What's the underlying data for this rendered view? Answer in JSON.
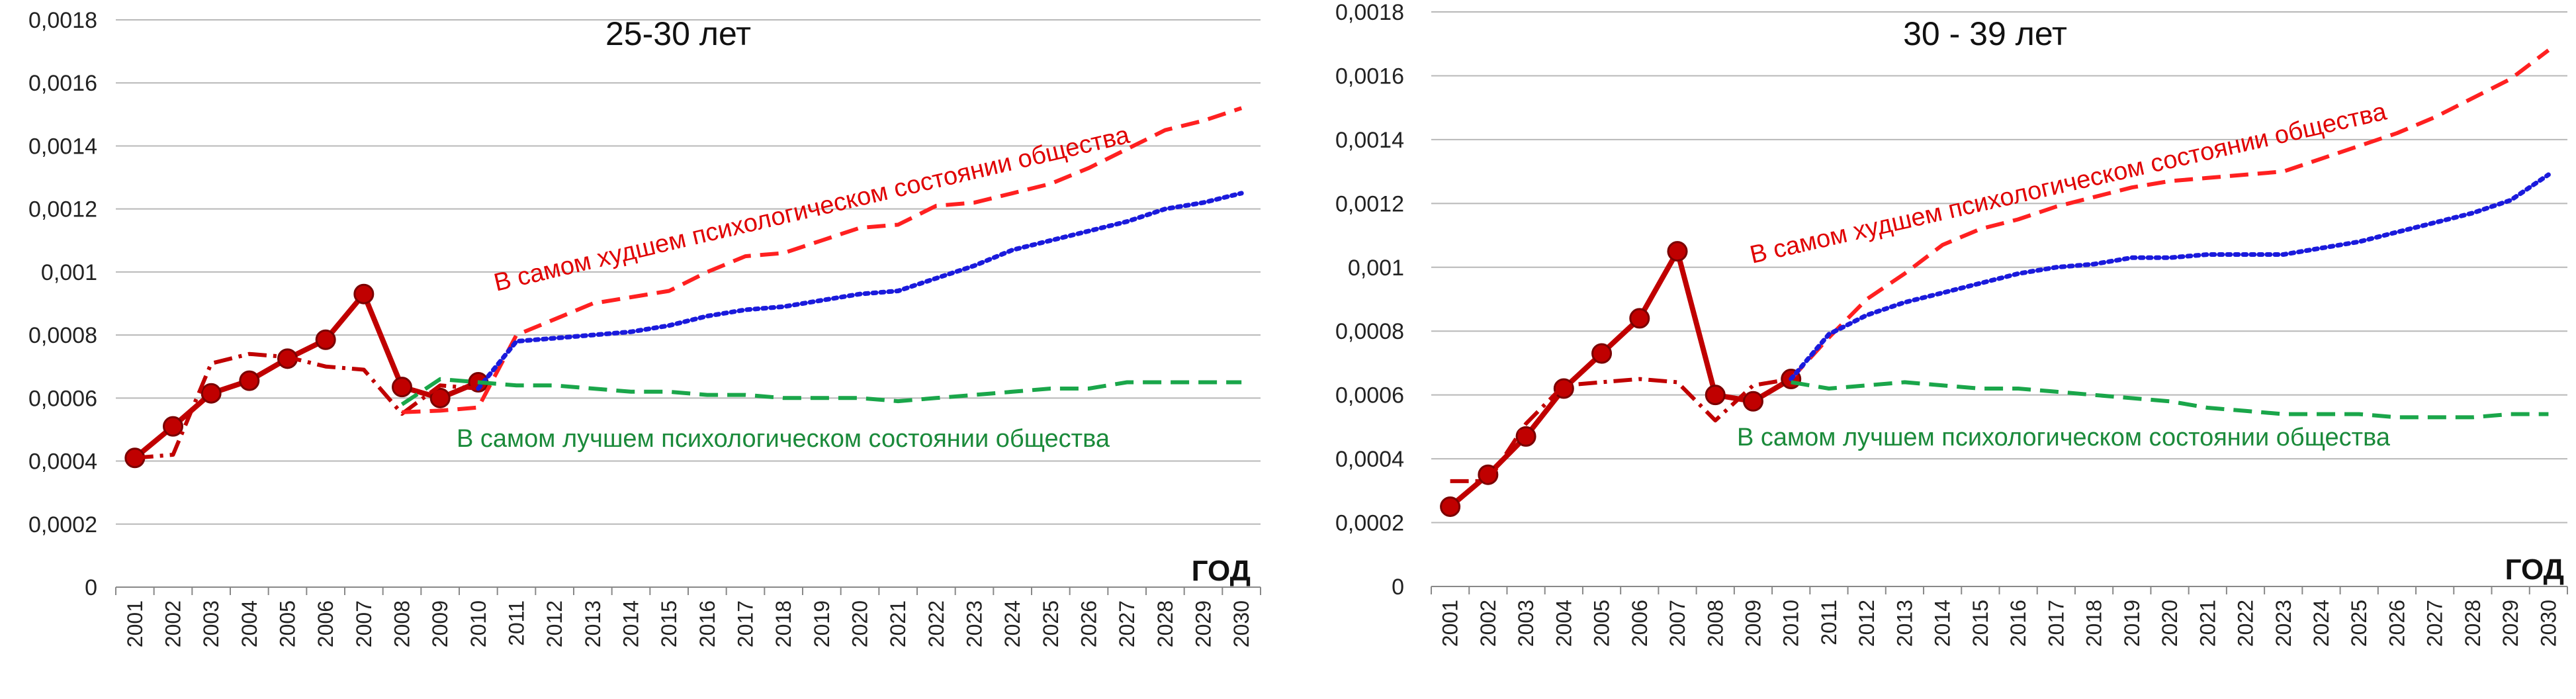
{
  "chart_data": [
    {
      "type": "line",
      "title": "25-30 лет",
      "xlabel": "ГОД",
      "ylabel": "",
      "ylim": [
        0,
        0.0018
      ],
      "yticks": [
        "0",
        "0,0002",
        "0,0004",
        "0,0006",
        "0,0008",
        "0,001",
        "0,0012",
        "0,0014",
        "0,0016",
        "0,0018"
      ],
      "categories": [
        "2001",
        "2002",
        "2003",
        "2004",
        "2005",
        "2006",
        "2007",
        "2008",
        "2009",
        "2010",
        "2011",
        "2012",
        "2013",
        "2014",
        "2015",
        "2016",
        "2017",
        "2018",
        "2019",
        "2020",
        "2021",
        "2022",
        "2023",
        "2024",
        "2025",
        "2026",
        "2027",
        "2028",
        "2029",
        "2030"
      ],
      "grid": true,
      "annotations": {
        "worst": "В самом худшем психологическом состоянии общества",
        "best": "В самом лучшем психологическом состоянии общества"
      },
      "series": [
        {
          "color": "#c00000",
          "style": "solid-markers",
          "x": [
            "2001",
            "2002",
            "2003",
            "2004",
            "2005",
            "2006",
            "2007",
            "2008",
            "2009",
            "2010"
          ],
          "values": [
            0.00041,
            0.00051,
            0.000615,
            0.000655,
            0.000725,
            0.000785,
            0.00093,
            0.000635,
            0.0006,
            0.00065
          ]
        },
        {
          "color": "#c00000",
          "style": "dash-dot",
          "x": [
            "2001",
            "2002",
            "2003",
            "2004",
            "2005",
            "2006",
            "2007",
            "2008",
            "2009",
            "2010"
          ],
          "values": [
            0.00041,
            0.00042,
            0.00071,
            0.00074,
            0.00073,
            0.0007,
            0.00069,
            0.00055,
            0.00064,
            0.00063
          ]
        },
        {
          "color": "#ff2020",
          "style": "dashed",
          "x": [
            "2008",
            "2009",
            "2010",
            "2011",
            "2012",
            "2013",
            "2014",
            "2015",
            "2016",
            "2017",
            "2018",
            "2019",
            "2020",
            "2021",
            "2022",
            "2023",
            "2024",
            "2025",
            "2026",
            "2027",
            "2028",
            "2029",
            "2030"
          ],
          "values": [
            0.000555,
            0.00056,
            0.00057,
            0.0008,
            0.00085,
            0.0009,
            0.00092,
            0.00094,
            0.001,
            0.00105,
            0.00106,
            0.0011,
            0.00114,
            0.00115,
            0.00121,
            0.00122,
            0.00125,
            0.00128,
            0.00133,
            0.00139,
            0.00145,
            0.00148,
            0.00152
          ]
        },
        {
          "color": "#1a1adc",
          "style": "dotted",
          "x": [
            "2010",
            "2011",
            "2012",
            "2013",
            "2014",
            "2015",
            "2016",
            "2017",
            "2018",
            "2019",
            "2020",
            "2021",
            "2022",
            "2023",
            "2024",
            "2025",
            "2026",
            "2027",
            "2028",
            "2029",
            "2030"
          ],
          "values": [
            0.00063,
            0.00078,
            0.00079,
            0.0008,
            0.00081,
            0.00083,
            0.00086,
            0.00088,
            0.00089,
            0.00091,
            0.00093,
            0.00094,
            0.00098,
            0.00102,
            0.00107,
            0.0011,
            0.00113,
            0.00116,
            0.0012,
            0.00122,
            0.00125
          ]
        },
        {
          "color": "#1aa64a",
          "style": "dashed",
          "x": [
            "2008",
            "2009",
            "2010",
            "2011",
            "2012",
            "2013",
            "2014",
            "2015",
            "2016",
            "2017",
            "2018",
            "2019",
            "2020",
            "2021",
            "2022",
            "2023",
            "2024",
            "2025",
            "2026",
            "2027",
            "2028",
            "2029",
            "2030"
          ],
          "values": [
            0.00058,
            0.00066,
            0.00065,
            0.00064,
            0.00064,
            0.00063,
            0.00062,
            0.00062,
            0.00061,
            0.00061,
            0.0006,
            0.0006,
            0.0006,
            0.00059,
            0.0006,
            0.00061,
            0.00062,
            0.00063,
            0.00063,
            0.00065,
            0.00065,
            0.00065,
            0.00065
          ]
        }
      ]
    },
    {
      "type": "line",
      "title": "30 - 39 лет",
      "xlabel": "ГОД",
      "ylabel": "",
      "ylim": [
        0,
        0.0018
      ],
      "yticks": [
        "0",
        "0,0002",
        "0,0004",
        "0,0006",
        "0,0008",
        "0,001",
        "0,0012",
        "0,0014",
        "0,0016",
        "0,0018"
      ],
      "categories": [
        "2001",
        "2002",
        "2003",
        "2004",
        "2005",
        "2006",
        "2007",
        "2008",
        "2009",
        "2010",
        "2011",
        "2012",
        "2013",
        "2014",
        "2015",
        "2016",
        "2017",
        "2018",
        "2019",
        "2020",
        "2021",
        "2022",
        "2023",
        "2024",
        "2025",
        "2026",
        "2027",
        "2028",
        "2029",
        "2030"
      ],
      "grid": true,
      "annotations": {
        "worst": "В самом худшем психологическом состоянии общества",
        "best": "В самом лучшем психологическом состоянии общества"
      },
      "series": [
        {
          "color": "#c00000",
          "style": "solid-markers",
          "x": [
            "2001",
            "2002",
            "2003",
            "2004",
            "2005",
            "2006",
            "2007",
            "2008",
            "2009",
            "2010"
          ],
          "values": [
            0.00025,
            0.00035,
            0.00047,
            0.00062,
            0.00073,
            0.00084,
            0.00105,
            0.0006,
            0.00058,
            0.00065
          ]
        },
        {
          "color": "#c00000",
          "style": "dash-dot",
          "x": [
            "2001",
            "2002",
            "2003",
            "2004",
            "2005",
            "2006",
            "2007",
            "2008",
            "2009",
            "2010"
          ],
          "values": [
            0.00033,
            0.00033,
            0.00051,
            0.00063,
            0.00064,
            0.00065,
            0.00064,
            0.00052,
            0.00063,
            0.00065
          ]
        },
        {
          "color": "#ff2020",
          "style": "dashed",
          "x": [
            "2010",
            "2011",
            "2012",
            "2013",
            "2014",
            "2015",
            "2016",
            "2017",
            "2018",
            "2019",
            "2020",
            "2021",
            "2022",
            "2023",
            "2024",
            "2025",
            "2026",
            "2027",
            "2028",
            "2029",
            "2030"
          ],
          "values": [
            0.00065,
            0.00078,
            0.0009,
            0.00098,
            0.00107,
            0.00112,
            0.00115,
            0.00119,
            0.00122,
            0.00125,
            0.00127,
            0.00128,
            0.00129,
            0.0013,
            0.00134,
            0.00138,
            0.00142,
            0.00147,
            0.00153,
            0.00159,
            0.00168
          ]
        },
        {
          "color": "#1a1adc",
          "style": "dotted",
          "x": [
            "2010",
            "2011",
            "2012",
            "2013",
            "2014",
            "2015",
            "2016",
            "2017",
            "2018",
            "2019",
            "2020",
            "2021",
            "2022",
            "2023",
            "2024",
            "2025",
            "2026",
            "2027",
            "2028",
            "2029",
            "2030"
          ],
          "values": [
            0.00065,
            0.00079,
            0.00085,
            0.00089,
            0.00092,
            0.00095,
            0.00098,
            0.001,
            0.00101,
            0.00103,
            0.00103,
            0.00104,
            0.00104,
            0.00104,
            0.00106,
            0.00108,
            0.00111,
            0.00114,
            0.00117,
            0.00121,
            0.00129
          ]
        },
        {
          "color": "#1aa64a",
          "style": "dashed",
          "x": [
            "2010",
            "2011",
            "2012",
            "2013",
            "2014",
            "2015",
            "2016",
            "2017",
            "2018",
            "2019",
            "2020",
            "2021",
            "2022",
            "2023",
            "2024",
            "2025",
            "2026",
            "2027",
            "2028",
            "2029",
            "2030"
          ],
          "values": [
            0.00064,
            0.00062,
            0.00063,
            0.00064,
            0.00063,
            0.00062,
            0.00062,
            0.00061,
            0.0006,
            0.00059,
            0.00058,
            0.00056,
            0.00055,
            0.00054,
            0.00054,
            0.00054,
            0.00053,
            0.00053,
            0.00053,
            0.00054,
            0.00054
          ]
        }
      ]
    }
  ]
}
